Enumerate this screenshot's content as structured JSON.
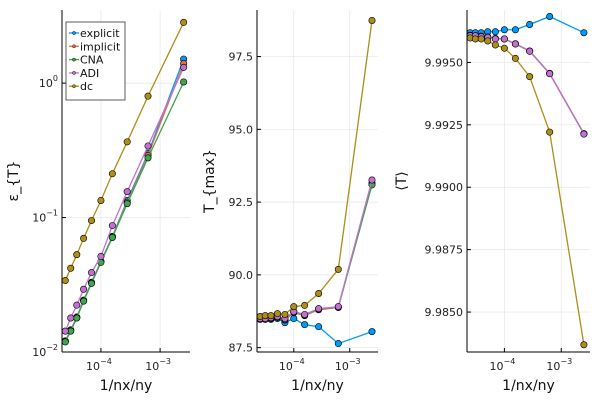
{
  "chart_data": [
    {
      "type": "line",
      "title": "",
      "xlabel": "1/nx/ny",
      "ylabel": "ε_{T}",
      "xscale": "log",
      "yscale": "log",
      "xlim": [
        2.2e-05,
        0.0032
      ],
      "ylim": [
        0.01,
        3.5
      ],
      "xticks": [
        {
          "value": 0.0001,
          "base": "10",
          "exp": "−4"
        },
        {
          "value": 0.001,
          "base": "10",
          "exp": "−3"
        }
      ],
      "yticks": [
        {
          "value": 0.01,
          "base": "10",
          "exp": "−2"
        },
        {
          "value": 0.1,
          "base": "10",
          "exp": "−1"
        },
        {
          "value": 1,
          "base": "10",
          "exp": "0"
        }
      ],
      "grid": true,
      "legend": "top-left",
      "x": [
        2.5e-05,
        3.09e-05,
        3.91e-05,
        5.1e-05,
        6.94e-05,
        0.0001,
        0.00015625,
        0.000278,
        0.000625,
        0.0025
      ],
      "series": [
        {
          "name": "explicit",
          "color": "#009AFA",
          "values": [
            0.0121,
            0.0146,
            0.0182,
            0.0243,
            0.033,
            0.0472,
            0.0725,
            0.134,
            0.3,
            1.51
          ]
        },
        {
          "name": "implicit",
          "color": "#E36F47",
          "values": [
            0.012,
            0.0145,
            0.018,
            0.0241,
            0.0327,
            0.0468,
            0.0718,
            0.13,
            0.29,
            1.4
          ]
        },
        {
          "name": "CNA",
          "color": "#3EA44E",
          "values": [
            0.0119,
            0.0143,
            0.0179,
            0.0239,
            0.0324,
            0.0464,
            0.0711,
            0.127,
            0.278,
            1.02
          ]
        },
        {
          "name": "ADI",
          "color": "#C271D2",
          "values": [
            0.0143,
            0.0179,
            0.0223,
            0.0293,
            0.039,
            0.0514,
            0.0872,
            0.156,
            0.341,
            1.31
          ]
        },
        {
          "name": "dc",
          "color": "#AC8E18",
          "values": [
            0.034,
            0.042,
            0.053,
            0.07,
            0.095,
            0.134,
            0.212,
            0.366,
            0.8,
            2.83
          ]
        }
      ]
    },
    {
      "type": "line",
      "title": "",
      "xlabel": "1/nx/ny",
      "ylabel": "T_{max}",
      "xscale": "log",
      "yscale": "linear",
      "xlim": [
        2.2e-05,
        0.0032
      ],
      "ylim": [
        87.35,
        99.1
      ],
      "xticks": [
        {
          "value": 0.0001,
          "base": "10",
          "exp": "−4"
        },
        {
          "value": 0.001,
          "base": "10",
          "exp": "−3"
        }
      ],
      "yticks": [
        {
          "value": 87.5,
          "label": "87.5"
        },
        {
          "value": 90.0,
          "label": "90.0"
        },
        {
          "value": 92.5,
          "label": "92.5"
        },
        {
          "value": 95.0,
          "label": "95.0"
        },
        {
          "value": 97.5,
          "label": "97.5"
        }
      ],
      "grid": true,
      "legend": "none",
      "x": [
        2.5e-05,
        3.09e-05,
        3.91e-05,
        5.1e-05,
        6.94e-05,
        0.0001,
        0.00015625,
        0.000278,
        0.000625,
        0.0025
      ],
      "series": [
        {
          "name": "explicit",
          "color": "#009AFA",
          "values": [
            88.47,
            88.47,
            88.47,
            88.5,
            88.36,
            88.5,
            88.29,
            88.22,
            87.64,
            88.05
          ]
        },
        {
          "name": "implicit",
          "color": "#E36F47",
          "values": [
            88.49,
            88.49,
            88.5,
            88.54,
            88.45,
            88.7,
            88.6,
            88.8,
            88.88,
            93.15
          ]
        },
        {
          "name": "CNA",
          "color": "#3EA44E",
          "values": [
            88.49,
            88.49,
            88.51,
            88.55,
            88.47,
            88.72,
            88.62,
            88.82,
            88.89,
            93.09
          ]
        },
        {
          "name": "ADI",
          "color": "#C271D2",
          "values": [
            88.5,
            88.5,
            88.53,
            88.57,
            88.5,
            88.74,
            88.64,
            88.84,
            88.91,
            93.26
          ]
        },
        {
          "name": "dc",
          "color": "#AC8E18",
          "values": [
            88.57,
            88.6,
            88.6,
            88.67,
            88.64,
            88.91,
            88.95,
            89.36,
            90.19,
            98.74
          ]
        }
      ]
    },
    {
      "type": "line",
      "title": "",
      "xlabel": "1/nx/ny",
      "ylabel": "⟨T⟩",
      "xscale": "log",
      "yscale": "linear",
      "xlim": [
        2.2e-05,
        0.0032
      ],
      "ylim": [
        9.9834,
        9.9971
      ],
      "xticks": [
        {
          "value": 0.0001,
          "base": "10",
          "exp": "−4"
        },
        {
          "value": 0.001,
          "base": "10",
          "exp": "−3"
        }
      ],
      "yticks": [
        {
          "value": 9.985,
          "label": "9.9850"
        },
        {
          "value": 9.9875,
          "label": "9.9875"
        },
        {
          "value": 9.99,
          "label": "9.9900"
        },
        {
          "value": 9.9925,
          "label": "9.9925"
        },
        {
          "value": 9.995,
          "label": "9.9950"
        }
      ],
      "grid": true,
      "legend": "none",
      "x": [
        2.5e-05,
        3.09e-05,
        3.91e-05,
        5.1e-05,
        6.94e-05,
        0.0001,
        0.00015625,
        0.000278,
        0.000625,
        0.0025
      ],
      "series": [
        {
          "name": "explicit",
          "color": "#009AFA",
          "values": [
            9.99619,
            9.99619,
            9.99619,
            9.99623,
            9.99623,
            9.99631,
            9.99631,
            9.99652,
            9.99684,
            9.99619
          ]
        },
        {
          "name": "implicit",
          "color": "#E36F47",
          "values": [
            9.99609,
            9.99607,
            9.99605,
            9.99602,
            9.99596,
            9.99594,
            9.99575,
            9.99546,
            9.99456,
            9.99215
          ]
        },
        {
          "name": "CNA",
          "color": "#3EA44E",
          "values": [
            9.99608,
            9.99607,
            9.99605,
            9.99601,
            9.99595,
            9.99594,
            9.99574,
            9.99545,
            9.99455,
            9.99214
          ]
        },
        {
          "name": "ADI",
          "color": "#C271D2",
          "values": [
            9.99607,
            9.99607,
            9.99603,
            9.996,
            9.99594,
            9.99594,
            9.99574,
            9.99545,
            9.99455,
            9.99213
          ]
        },
        {
          "name": "dc",
          "color": "#AC8E18",
          "values": [
            9.99598,
            9.99594,
            9.99594,
            9.99586,
            9.9957,
            9.99557,
            9.99516,
            9.99443,
            9.99221,
            9.98369
          ]
        }
      ]
    }
  ]
}
